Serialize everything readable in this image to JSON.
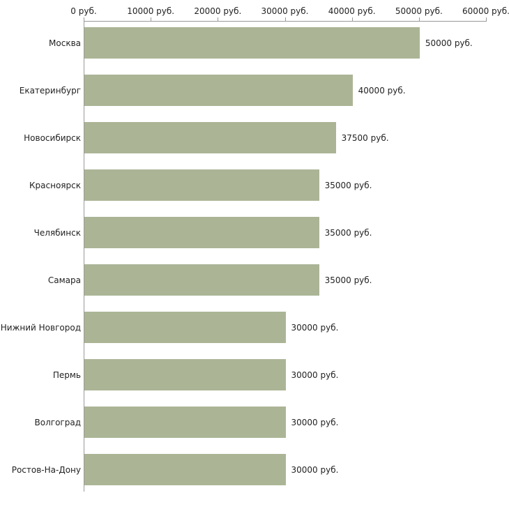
{
  "chart_data": {
    "type": "bar",
    "orientation": "horizontal",
    "title": "",
    "xlabel": "",
    "ylabel": "",
    "categories": [
      "Москва",
      "Екатеринбург",
      "Новосибирск",
      "Красноярск",
      "Челябинск",
      "Самара",
      "Нижний Новгород",
      "Пермь",
      "Волгоград",
      "Ростов-На-Дону"
    ],
    "values": [
      50000,
      40000,
      37500,
      35000,
      35000,
      35000,
      30000,
      30000,
      30000,
      30000
    ],
    "value_labels": [
      "50000 руб.",
      "40000 руб.",
      "37500 руб.",
      "35000 руб.",
      "35000 руб.",
      "35000 руб.",
      "30000 руб.",
      "30000 руб.",
      "30000 руб.",
      "30000 руб."
    ],
    "x_ticks": [
      {
        "value": 0,
        "label": "0 руб."
      },
      {
        "value": 10000,
        "label": "10000 руб."
      },
      {
        "value": 20000,
        "label": "20000 руб."
      },
      {
        "value": 30000,
        "label": "30000 руб."
      },
      {
        "value": 40000,
        "label": "40000 руб."
      },
      {
        "value": 50000,
        "label": "50000 руб."
      },
      {
        "value": 60000,
        "label": "60000 руб."
      }
    ],
    "xlim": [
      0,
      60000
    ],
    "grid": false,
    "legend": false,
    "bar_color": "#abb596",
    "axis_color": "#999999",
    "text_color": "#222222",
    "background_color": "#ffffff"
  }
}
